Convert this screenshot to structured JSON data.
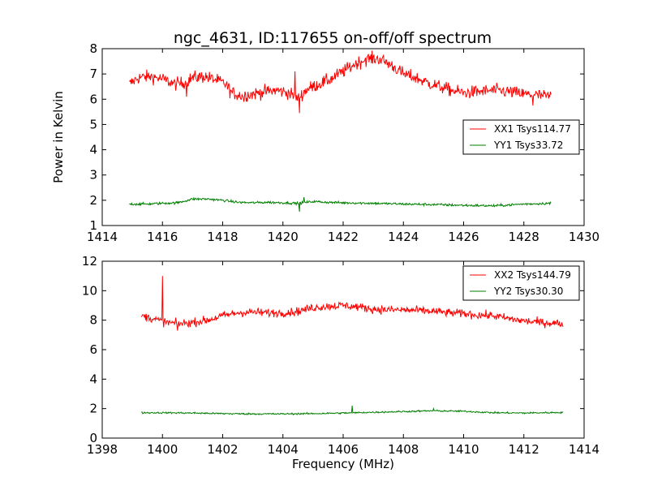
{
  "title": "ngc_4631, ID:117655 on-off/off spectrum",
  "colors": {
    "xx": "#ff0000",
    "yy": "#007f00"
  },
  "chart_data": [
    {
      "type": "line",
      "panel": "top",
      "xlabel": "",
      "ylabel": "Power in Kelvin",
      "xlim": [
        1414,
        1430
      ],
      "ylim": [
        1,
        8
      ],
      "xticks": [
        "1414",
        "1416",
        "1418",
        "1420",
        "1422",
        "1424",
        "1426",
        "1428",
        "1430"
      ],
      "yticks": [
        "1",
        "2",
        "3",
        "4",
        "5",
        "6",
        "7",
        "8"
      ],
      "legend_position": "right",
      "x_range": [
        1414.9,
        1428.9
      ],
      "series": [
        {
          "name": "XX1 Tsys114.77",
          "color": "#ff0000",
          "noise": 0.18,
          "points": [
            [
              1414.9,
              6.6
            ],
            [
              1415.2,
              6.85
            ],
            [
              1415.6,
              6.9
            ],
            [
              1416.0,
              6.8
            ],
            [
              1416.4,
              6.6
            ],
            [
              1416.7,
              6.65
            ],
            [
              1417.0,
              6.85
            ],
            [
              1417.4,
              6.9
            ],
            [
              1417.8,
              6.75
            ],
            [
              1418.1,
              6.6
            ],
            [
              1418.3,
              6.25
            ],
            [
              1418.6,
              6.15
            ],
            [
              1419.0,
              6.2
            ],
            [
              1419.4,
              6.3
            ],
            [
              1419.8,
              6.35
            ],
            [
              1420.2,
              6.25
            ],
            [
              1420.5,
              6.0
            ],
            [
              1420.8,
              6.4
            ],
            [
              1421.2,
              6.6
            ],
            [
              1421.6,
              6.8
            ],
            [
              1422.0,
              7.1
            ],
            [
              1422.4,
              7.4
            ],
            [
              1422.8,
              7.6
            ],
            [
              1423.2,
              7.6
            ],
            [
              1423.6,
              7.35
            ],
            [
              1424.0,
              7.0
            ],
            [
              1424.4,
              6.85
            ],
            [
              1424.8,
              6.65
            ],
            [
              1425.2,
              6.5
            ],
            [
              1425.6,
              6.35
            ],
            [
              1426.0,
              6.25
            ],
            [
              1426.5,
              6.3
            ],
            [
              1427.0,
              6.35
            ],
            [
              1427.5,
              6.3
            ],
            [
              1428.0,
              6.2
            ],
            [
              1428.5,
              6.15
            ],
            [
              1428.9,
              6.1
            ]
          ],
          "spikes": [
            [
              1416.8,
              6.1
            ],
            [
              1418.7,
              5.9
            ],
            [
              1420.55,
              5.45
            ],
            [
              1420.4,
              7.1
            ],
            [
              1428.3,
              5.75
            ]
          ]
        },
        {
          "name": "YY1 Tsys33.72",
          "color": "#007f00",
          "noise": 0.035,
          "points": [
            [
              1414.9,
              1.85
            ],
            [
              1415.5,
              1.85
            ],
            [
              1416.0,
              1.88
            ],
            [
              1416.5,
              1.9
            ],
            [
              1417.0,
              2.05
            ],
            [
              1417.5,
              2.05
            ],
            [
              1418.0,
              2.0
            ],
            [
              1418.5,
              1.92
            ],
            [
              1419.0,
              1.9
            ],
            [
              1419.5,
              1.92
            ],
            [
              1420.0,
              1.9
            ],
            [
              1420.5,
              1.88
            ],
            [
              1421.0,
              1.95
            ],
            [
              1421.5,
              1.92
            ],
            [
              1422.0,
              1.9
            ],
            [
              1423.0,
              1.88
            ],
            [
              1424.0,
              1.85
            ],
            [
              1425.0,
              1.83
            ],
            [
              1426.0,
              1.8
            ],
            [
              1427.0,
              1.78
            ],
            [
              1428.0,
              1.85
            ],
            [
              1428.9,
              1.88
            ]
          ],
          "spikes": [
            [
              1420.55,
              1.55
            ],
            [
              1420.7,
              2.12
            ]
          ]
        }
      ]
    },
    {
      "type": "line",
      "panel": "bottom",
      "xlabel": "Frequency (MHz)",
      "ylabel": "",
      "xlim": [
        1398,
        1414
      ],
      "ylim": [
        0,
        12
      ],
      "xticks": [
        "1398",
        "1400",
        "1402",
        "1404",
        "1406",
        "1408",
        "1410",
        "1412",
        "1414"
      ],
      "yticks": [
        "0",
        "2",
        "4",
        "6",
        "8",
        "10",
        "12"
      ],
      "legend_position": "top-right",
      "x_range": [
        1399.3,
        1413.3
      ],
      "series": [
        {
          "name": "XX2 Tsys144.79",
          "color": "#ff0000",
          "noise": 0.2,
          "points": [
            [
              1399.3,
              8.3
            ],
            [
              1399.7,
              8.1
            ],
            [
              1400.0,
              7.9
            ],
            [
              1400.5,
              7.75
            ],
            [
              1401.0,
              7.85
            ],
            [
              1401.5,
              8.0
            ],
            [
              1402.0,
              8.3
            ],
            [
              1402.5,
              8.5
            ],
            [
              1403.0,
              8.55
            ],
            [
              1403.5,
              8.5
            ],
            [
              1404.0,
              8.5
            ],
            [
              1404.5,
              8.6
            ],
            [
              1405.0,
              8.85
            ],
            [
              1405.5,
              8.95
            ],
            [
              1406.0,
              9.0
            ],
            [
              1406.5,
              8.9
            ],
            [
              1407.0,
              8.75
            ],
            [
              1407.5,
              8.7
            ],
            [
              1408.0,
              8.7
            ],
            [
              1408.5,
              8.65
            ],
            [
              1409.0,
              8.6
            ],
            [
              1409.5,
              8.5
            ],
            [
              1410.0,
              8.45
            ],
            [
              1410.5,
              8.35
            ],
            [
              1411.0,
              8.3
            ],
            [
              1411.5,
              8.1
            ],
            [
              1412.0,
              7.95
            ],
            [
              1412.5,
              7.85
            ],
            [
              1413.0,
              7.8
            ],
            [
              1413.3,
              7.75
            ]
          ],
          "spikes": [
            [
              1400.0,
              11.0
            ],
            [
              1400.5,
              7.3
            ]
          ]
        },
        {
          "name": "YY2 Tsys30.30",
          "color": "#007f00",
          "noise": 0.04,
          "points": [
            [
              1399.3,
              1.72
            ],
            [
              1400.0,
              1.72
            ],
            [
              1401.0,
              1.7
            ],
            [
              1402.0,
              1.66
            ],
            [
              1403.0,
              1.64
            ],
            [
              1404.0,
              1.64
            ],
            [
              1405.0,
              1.66
            ],
            [
              1406.0,
              1.7
            ],
            [
              1407.0,
              1.75
            ],
            [
              1408.0,
              1.8
            ],
            [
              1409.0,
              1.85
            ],
            [
              1410.0,
              1.82
            ],
            [
              1411.0,
              1.72
            ],
            [
              1412.0,
              1.7
            ],
            [
              1413.3,
              1.74
            ]
          ],
          "spikes": [
            [
              1406.3,
              2.2
            ],
            [
              1409.0,
              2.0
            ]
          ]
        }
      ]
    }
  ]
}
